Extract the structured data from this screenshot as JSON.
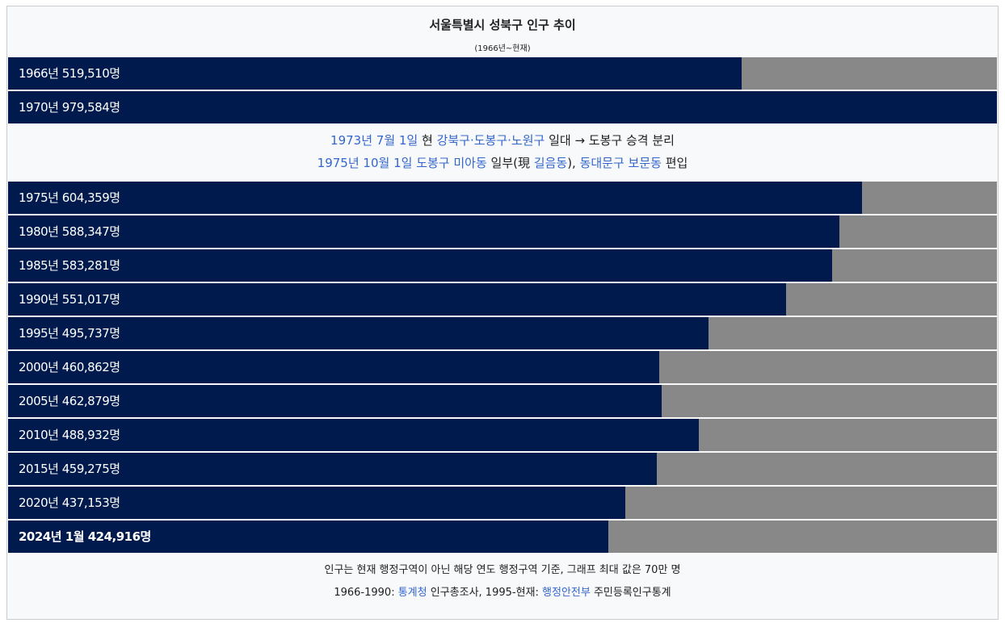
{
  "title": "서울특별시 성북구 인구 추이",
  "subtitle": "(1966년~현재)",
  "xlim": [
    0,
    700000
  ],
  "bar_color": "#001a4d",
  "track_color": "#888888",
  "link_color": "#3366cc",
  "groups": [
    {
      "rows": [
        {
          "label": "1966년 519,510명",
          "value": 519510
        },
        {
          "label": "1970년 979,584명",
          "value": 979584
        }
      ]
    },
    {
      "note": [
        [
          {
            "text": "1973년 7월 1일",
            "link": true
          },
          {
            "text": " 현 "
          },
          {
            "text": "강북구·도봉구·노원구",
            "link": true
          },
          {
            "text": " 일대 → 도봉구 승격 분리"
          }
        ],
        [
          {
            "text": "1975년 10월 1일",
            "link": true
          },
          {
            "text": " "
          },
          {
            "text": "도봉구 미아동",
            "link": true
          },
          {
            "text": " 일부(現 "
          },
          {
            "text": "길음동",
            "link": true
          },
          {
            "text": "), "
          },
          {
            "text": "동대문구 보문동",
            "link": true
          },
          {
            "text": " 편입"
          }
        ]
      ]
    },
    {
      "rows": [
        {
          "label": "1975년 604,359명",
          "value": 604359
        },
        {
          "label": "1980년 588,347명",
          "value": 588347
        },
        {
          "label": "1985년 583,281명",
          "value": 583281
        },
        {
          "label": "1990년 551,017명",
          "value": 551017
        },
        {
          "label": "1995년 495,737명",
          "value": 495737
        },
        {
          "label": "2000년 460,862명",
          "value": 460862
        },
        {
          "label": "2005년 462,879명",
          "value": 462879
        },
        {
          "label": "2010년 488,932명",
          "value": 488932
        },
        {
          "label": "2015년 459,275명",
          "value": 459275
        },
        {
          "label": "2020년 437,153명",
          "value": 437153
        },
        {
          "label": "2024년 1월 424,916명",
          "value": 424916,
          "bold": true
        }
      ]
    }
  ],
  "footer": [
    [
      {
        "text": "인구는 현재 행정구역이 아닌 해당 연도 행정구역 기준, 그래프 최대 값은 70만 명"
      }
    ],
    [
      {
        "text": "1966-1990: "
      },
      {
        "text": "통계청",
        "link": true
      },
      {
        "text": " 인구총조사, 1995-현재: "
      },
      {
        "text": "행정안전부",
        "link": true
      },
      {
        "text": " 주민등록인구통계"
      }
    ]
  ]
}
